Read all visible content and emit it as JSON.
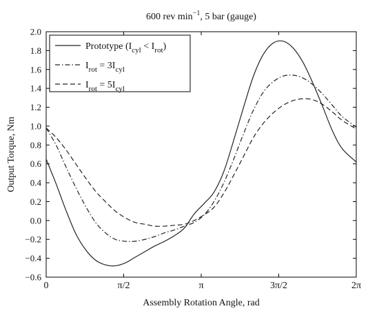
{
  "chart_data": {
    "type": "line",
    "title": {
      "main": "600 rev min",
      "sup": "−1",
      "rest": ", 5 bar (gauge)"
    },
    "xlabel": "Assembly Rotation Angle, rad",
    "ylabel": "Output Torque, Nm",
    "xlim": [
      0,
      6.2832
    ],
    "ylim": [
      -0.6,
      2.0
    ],
    "grid": false,
    "legend_position": "top-left",
    "x_ticks": [
      {
        "value": 0,
        "label": "0"
      },
      {
        "value": 1.5708,
        "label": "π/2"
      },
      {
        "value": 3.1416,
        "label": "π"
      },
      {
        "value": 4.7124,
        "label": "3π/2"
      },
      {
        "value": 6.2832,
        "label": "2π"
      }
    ],
    "y_ticks": [
      {
        "value": -0.6,
        "label": "−0.6"
      },
      {
        "value": -0.4,
        "label": "−0.4"
      },
      {
        "value": -0.2,
        "label": "−0.2"
      },
      {
        "value": 0.0,
        "label": "0.0"
      },
      {
        "value": 0.2,
        "label": "0.2"
      },
      {
        "value": 0.4,
        "label": "0.4"
      },
      {
        "value": 0.6,
        "label": "0.6"
      },
      {
        "value": 0.8,
        "label": "0.8"
      },
      {
        "value": 1.0,
        "label": "1.0"
      },
      {
        "value": 1.2,
        "label": "1.2"
      },
      {
        "value": 1.4,
        "label": "1.4"
      },
      {
        "value": 1.6,
        "label": "1.6"
      },
      {
        "value": 1.8,
        "label": "1.8"
      },
      {
        "value": 2.0,
        "label": "2.0"
      }
    ],
    "series": [
      {
        "legend": {
          "pre": "Prototype (I",
          "s1": "cyl",
          "mid": " < I",
          "s2": "rot",
          "post": ")"
        },
        "dash": "solid",
        "x": [
          0,
          0.2,
          0.4,
          0.6,
          0.8,
          1.0,
          1.2,
          1.4,
          1.6,
          1.8,
          2.0,
          2.2,
          2.4,
          2.6,
          2.8,
          3.0,
          3.2,
          3.4,
          3.6,
          3.8,
          4.0,
          4.2,
          4.4,
          4.6,
          4.8,
          5.0,
          5.2,
          5.4,
          5.6,
          5.8,
          6.0,
          6.2832
        ],
        "y": [
          0.65,
          0.39,
          0.11,
          -0.14,
          -0.31,
          -0.42,
          -0.47,
          -0.48,
          -0.45,
          -0.39,
          -0.33,
          -0.27,
          -0.22,
          -0.16,
          -0.08,
          0.07,
          0.18,
          0.3,
          0.52,
          0.85,
          1.2,
          1.53,
          1.76,
          1.88,
          1.9,
          1.83,
          1.68,
          1.46,
          1.21,
          0.95,
          0.76,
          0.62
        ]
      },
      {
        "legend": {
          "pre": "I",
          "s1": "rot",
          "mid": " = 3I",
          "s2": "cyl",
          "post": ""
        },
        "dash": "dashdot",
        "x": [
          0,
          0.2,
          0.4,
          0.6,
          0.8,
          1.0,
          1.2,
          1.4,
          1.6,
          1.8,
          2.0,
          2.2,
          2.4,
          2.6,
          2.8,
          3.0,
          3.2,
          3.4,
          3.6,
          3.8,
          4.0,
          4.2,
          4.4,
          4.6,
          4.8,
          5.0,
          5.2,
          5.4,
          5.6,
          5.8,
          6.0,
          6.2832
        ],
        "y": [
          0.98,
          0.8,
          0.57,
          0.35,
          0.15,
          -0.02,
          -0.13,
          -0.2,
          -0.22,
          -0.22,
          -0.2,
          -0.17,
          -0.13,
          -0.1,
          -0.06,
          -0.02,
          0.06,
          0.2,
          0.4,
          0.65,
          0.92,
          1.17,
          1.36,
          1.47,
          1.53,
          1.54,
          1.51,
          1.44,
          1.34,
          1.22,
          1.1,
          0.99
        ]
      },
      {
        "legend": {
          "pre": "I",
          "s1": "rot",
          "mid": " = 5I",
          "s2": "cyl",
          "post": ""
        },
        "dash": "dashed",
        "x": [
          0,
          0.2,
          0.4,
          0.6,
          0.8,
          1.0,
          1.2,
          1.4,
          1.6,
          1.8,
          2.0,
          2.2,
          2.4,
          2.6,
          2.8,
          3.0,
          3.2,
          3.4,
          3.6,
          3.8,
          4.0,
          4.2,
          4.4,
          4.6,
          4.8,
          5.0,
          5.2,
          5.4,
          5.6,
          5.8,
          6.0,
          6.2832
        ],
        "y": [
          0.98,
          0.88,
          0.75,
          0.6,
          0.45,
          0.31,
          0.2,
          0.1,
          0.03,
          -0.02,
          -0.04,
          -0.06,
          -0.06,
          -0.05,
          -0.04,
          0.0,
          0.06,
          0.14,
          0.29,
          0.48,
          0.68,
          0.88,
          1.03,
          1.14,
          1.22,
          1.27,
          1.29,
          1.28,
          1.23,
          1.15,
          1.06,
          0.97
        ]
      }
    ]
  }
}
